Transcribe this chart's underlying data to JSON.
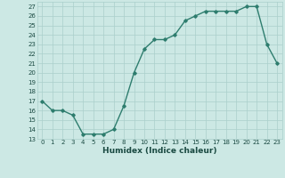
{
  "x": [
    0,
    1,
    2,
    3,
    4,
    5,
    6,
    7,
    8,
    9,
    10,
    11,
    12,
    13,
    14,
    15,
    16,
    17,
    18,
    19,
    20,
    21,
    22,
    23
  ],
  "y": [
    17,
    16,
    16,
    15.5,
    13.5,
    13.5,
    13.5,
    14,
    16.5,
    20,
    22.5,
    23.5,
    23.5,
    24,
    25.5,
    26,
    26.5,
    26.5,
    26.5,
    26.5,
    27,
    27,
    23,
    21
  ],
  "line_color": "#2e7d6e",
  "marker": "D",
  "marker_size": 1.8,
  "bg_color": "#cce8e4",
  "grid_color": "#aacfcb",
  "xlabel": "Humidex (Indice chaleur)",
  "xlim": [
    -0.5,
    23.5
  ],
  "ylim": [
    13,
    27.5
  ],
  "yticks": [
    13,
    14,
    15,
    16,
    17,
    18,
    19,
    20,
    21,
    22,
    23,
    24,
    25,
    26,
    27
  ],
  "xticks": [
    0,
    1,
    2,
    3,
    4,
    5,
    6,
    7,
    8,
    9,
    10,
    11,
    12,
    13,
    14,
    15,
    16,
    17,
    18,
    19,
    20,
    21,
    22,
    23
  ],
  "font_color": "#1a4a42",
  "tick_fontsize": 5.0,
  "label_fontsize": 6.5,
  "linewidth": 1.0
}
